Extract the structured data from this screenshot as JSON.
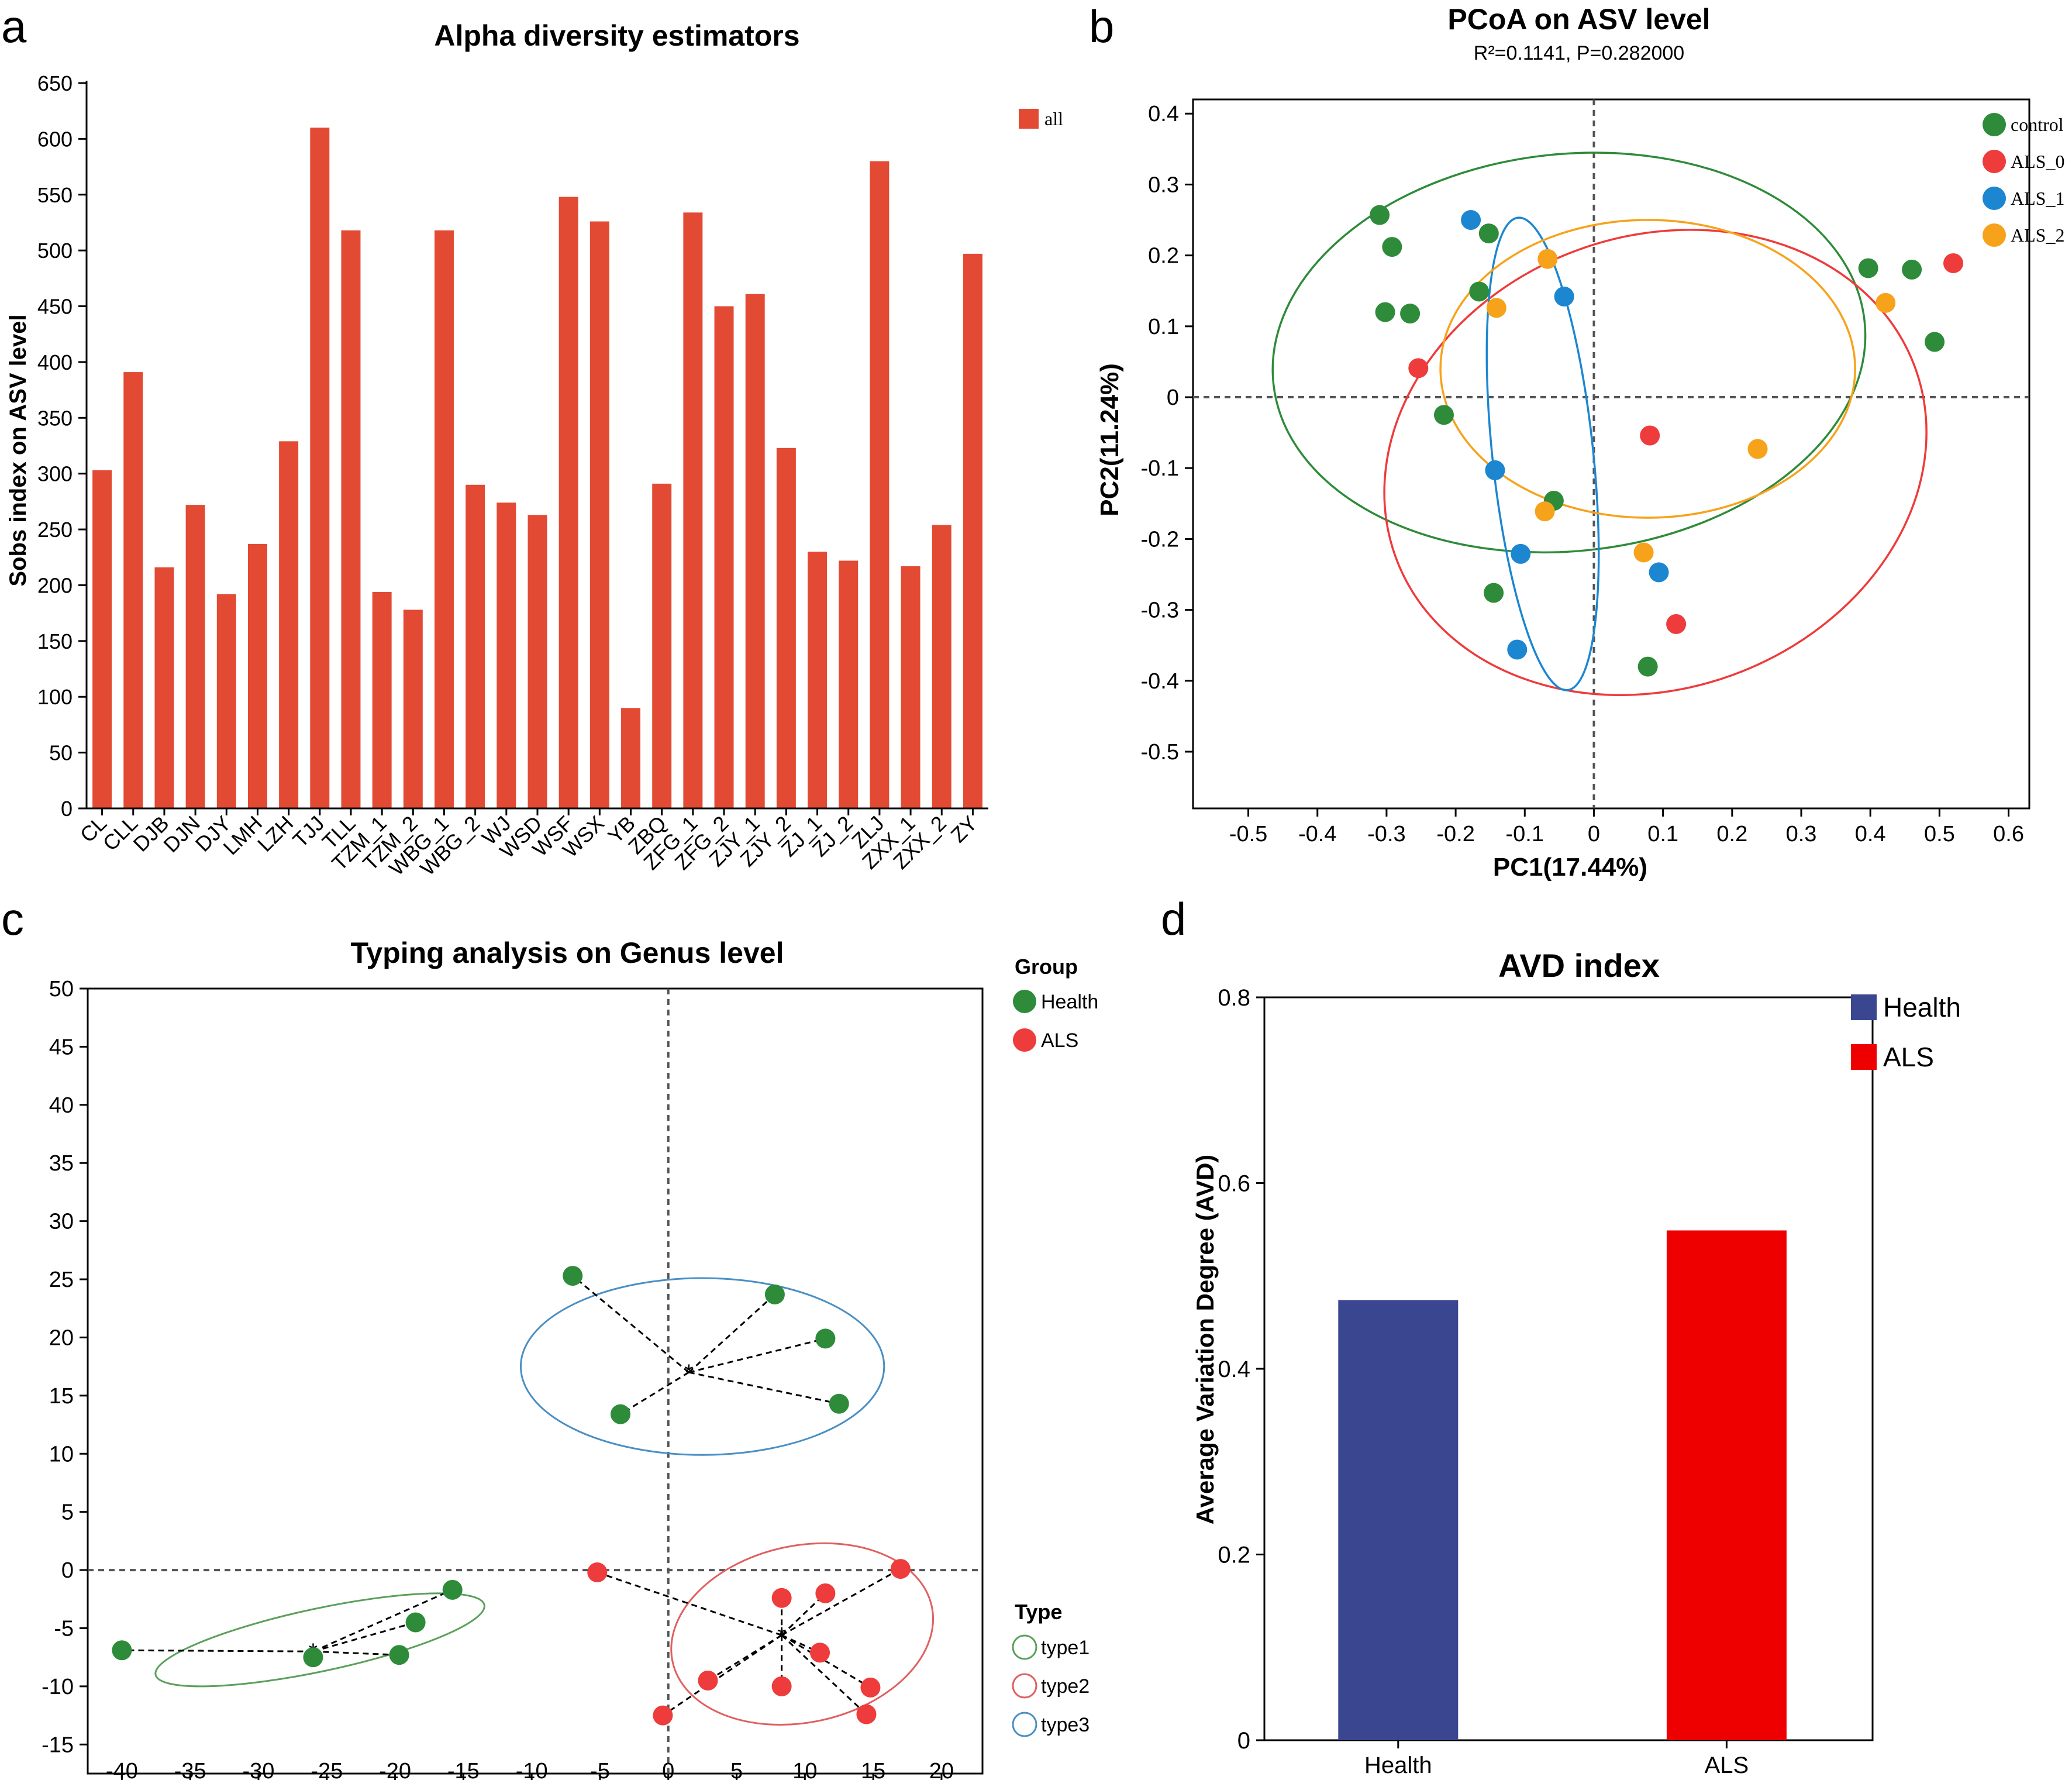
{
  "panels": {
    "a": "a",
    "b": "b",
    "c": "c",
    "d": "d"
  },
  "colors": {
    "bar_red": "#E34A33",
    "control": "#2E8B3A",
    "als0": "#EE3B3B",
    "als1": "#1C86D0",
    "als2": "#F7A21B",
    "health_green": "#2E8B3A",
    "als_red": "#EE3B3B",
    "type1": "#5BA05B",
    "type2": "#E06060",
    "type3": "#4A8FC4",
    "avd_health": "#3B4690",
    "avd_als": "#EE0000"
  },
  "chart_data": [
    {
      "id": "a",
      "type": "bar",
      "title": "Alpha diversity estimators",
      "ylabel": "Sobs index on ASV level",
      "xlabel": "",
      "ylim": [
        0,
        650
      ],
      "yticks": [
        0,
        50,
        100,
        150,
        200,
        250,
        300,
        350,
        400,
        450,
        500,
        550,
        600,
        650
      ],
      "legend": [
        "all"
      ],
      "categories": [
        "CL",
        "CLL",
        "DJB",
        "DJN",
        "DJY",
        "LMH",
        "LZH",
        "TJJ",
        "TLL",
        "TZM_1",
        "TZM_2",
        "WBG_1",
        "WBG_2",
        "WJ",
        "WSD",
        "WSF",
        "WSX",
        "YB",
        "ZBQ",
        "ZFG_1",
        "ZFG_2",
        "ZJY_1",
        "ZJY_2",
        "ZJ_1",
        "ZJ_2",
        "ZLJ",
        "ZXX_1",
        "ZXX_2",
        "ZY"
      ],
      "values": [
        303,
        391,
        216,
        272,
        192,
        237,
        329,
        610,
        518,
        194,
        178,
        518,
        290,
        274,
        263,
        548,
        526,
        90,
        291,
        534,
        450,
        461,
        323,
        230,
        222,
        580,
        217,
        254,
        497
      ]
    },
    {
      "id": "b",
      "type": "scatter",
      "title": "PCoA on ASV level",
      "subtitle": "R²=0.1141, P=0.282000",
      "xlabel": "PC1(17.44%)",
      "ylabel": "PC2(11.24%)",
      "xlim": [
        -0.58,
        0.63
      ],
      "ylim": [
        -0.58,
        0.42
      ],
      "xticks": [
        -0.5,
        -0.4,
        -0.3,
        -0.2,
        -0.1,
        0,
        0.1,
        0.2,
        0.3,
        0.4,
        0.5,
        0.6
      ],
      "yticks": [
        -0.5,
        -0.4,
        -0.3,
        -0.2,
        -0.1,
        0,
        0.1,
        0.2,
        0.3,
        0.4
      ],
      "series": [
        {
          "name": "control",
          "points": [
            [
              -0.31,
              0.257
            ],
            [
              -0.292,
              0.212
            ],
            [
              -0.302,
              0.12
            ],
            [
              -0.266,
              0.118
            ],
            [
              -0.166,
              0.149
            ],
            [
              -0.152,
              0.231
            ],
            [
              -0.217,
              -0.025
            ],
            [
              -0.058,
              -0.146
            ],
            [
              -0.145,
              -0.276
            ],
            [
              0.397,
              0.182
            ],
            [
              0.46,
              0.18
            ],
            [
              0.493,
              0.078
            ],
            [
              0.078,
              -0.38
            ]
          ]
        },
        {
          "name": "ALS_0",
          "points": [
            [
              -0.254,
              0.041
            ],
            [
              0.081,
              -0.054
            ],
            [
              0.119,
              -0.32
            ],
            [
              0.52,
              0.189
            ]
          ]
        },
        {
          "name": "ALS_1",
          "points": [
            [
              -0.178,
              0.25
            ],
            [
              -0.043,
              0.142
            ],
            [
              -0.143,
              -0.103
            ],
            [
              -0.106,
              -0.221
            ],
            [
              -0.111,
              -0.356
            ],
            [
              0.094,
              -0.247
            ]
          ]
        },
        {
          "name": "ALS_2",
          "points": [
            [
              -0.141,
              0.126
            ],
            [
              -0.067,
              0.195
            ],
            [
              -0.071,
              -0.161
            ],
            [
              0.072,
              -0.219
            ],
            [
              0.237,
              -0.073
            ],
            [
              0.422,
              0.133
            ]
          ]
        }
      ],
      "ellipses": [
        {
          "group": "control",
          "cx": -0.036,
          "cy": 0.063,
          "rx": 0.43,
          "ry": 0.28,
          "angle": -6
        },
        {
          "group": "ALS_0",
          "cx": 0.089,
          "cy": -0.092,
          "rx": 0.4,
          "ry": 0.319,
          "angle": -20
        },
        {
          "group": "ALS_1",
          "cx": -0.074,
          "cy": -0.08,
          "rx": 0.073,
          "ry": 0.335,
          "angle": -6
        },
        {
          "group": "ALS_2",
          "cx": 0.078,
          "cy": 0.04,
          "rx": 0.3,
          "ry": 0.21,
          "angle": 0
        }
      ]
    },
    {
      "id": "c",
      "type": "scatter",
      "title": "Typing analysis on Genus level",
      "xlim": [
        -42.5,
        23
      ],
      "ylim": [
        -17.5,
        50
      ],
      "xticks": [
        -40,
        -35,
        -30,
        -25,
        -20,
        -15,
        -10,
        -5,
        0,
        5,
        10,
        15,
        20
      ],
      "yticks": [
        -15,
        -10,
        -5,
        0,
        5,
        10,
        15,
        20,
        25,
        30,
        35,
        40,
        45,
        50
      ],
      "legend_group_title": "Group",
      "legend_type_title": "Type",
      "groups": [
        "Health",
        "ALS"
      ],
      "types": [
        "type1",
        "type2",
        "type3"
      ],
      "clusters": [
        {
          "type": "type3",
          "group": "Health",
          "center": [
            1.5,
            17
          ],
          "ellipse": {
            "cx": 2.5,
            "cy": 17.5,
            "rx": 13.3,
            "ry": 7.6,
            "angle": 0
          },
          "points": [
            [
              -7,
              25.3
            ],
            [
              7.8,
              23.7
            ],
            [
              11.5,
              19.9
            ],
            [
              12.5,
              14.3
            ],
            [
              -3.5,
              13.4
            ]
          ]
        },
        {
          "type": "type1",
          "group": "Health",
          "center": [
            -26,
            -7
          ],
          "ellipse": {
            "cx": -25.5,
            "cy": -6,
            "rx": 12.3,
            "ry": 2.7,
            "angle": -12
          },
          "points": [
            [
              -40,
              -6.9
            ],
            [
              -26,
              -7.5
            ],
            [
              -19.7,
              -7.3
            ],
            [
              -18.5,
              -4.5
            ],
            [
              -15.8,
              -1.7
            ]
          ]
        },
        {
          "type": "type2",
          "group": "ALS",
          "center": [
            8.3,
            -5.6
          ],
          "ellipse": {
            "cx": 9.8,
            "cy": -5.5,
            "rx": 9.7,
            "ry": 7.6,
            "angle": -12
          },
          "points": [
            [
              -5.2,
              -0.2
            ],
            [
              17,
              0.1
            ],
            [
              11.5,
              -2
            ],
            [
              8.3,
              -2.4
            ],
            [
              11.1,
              -7.1
            ],
            [
              2.9,
              -9.5
            ],
            [
              8.3,
              -10
            ],
            [
              14.8,
              -10.1
            ],
            [
              14.5,
              -12.4
            ],
            [
              -0.4,
              -12.5
            ]
          ]
        }
      ]
    },
    {
      "id": "d",
      "type": "bar",
      "title": "AVD index",
      "ylabel": "Average Variation Degree (AVD)",
      "xlabel": "",
      "ylim": [
        0,
        0.8
      ],
      "yticks": [
        0,
        0.2,
        0.4,
        0.6,
        0.8
      ],
      "categories": [
        "Health",
        "ALS"
      ],
      "values": [
        0.474,
        0.549
      ],
      "legend": [
        "Health",
        "ALS"
      ]
    }
  ]
}
